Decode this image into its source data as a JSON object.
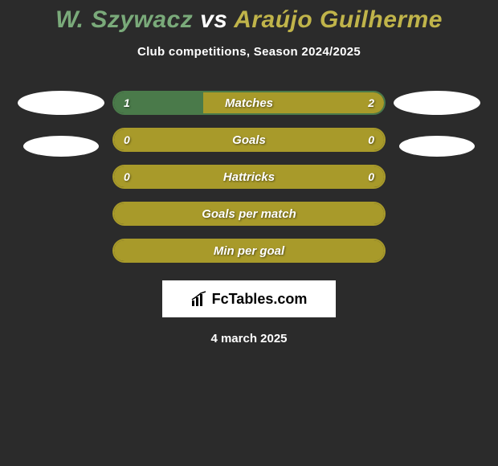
{
  "header": {
    "title_prefix": "W. Szywacz",
    "vs": "vs",
    "title_suffix": "Araújo Guilherme",
    "subtitle": "Club competitions, Season 2024/2025"
  },
  "player1_color": "#4a7a4a",
  "player2_color": "#a89a2a",
  "title_player1_color": "#7aaa7a",
  "title_vs_color": "#ffffff",
  "title_player2_color": "#c0b44a",
  "stats": {
    "matches": {
      "label": "Matches",
      "left_value": "1",
      "right_value": "2",
      "left_fill_pct": 33,
      "right_fill_pct": 67,
      "show_values": true
    },
    "goals": {
      "label": "Goals",
      "left_value": "0",
      "right_value": "0",
      "full_color": "player2",
      "show_values": true
    },
    "hattricks": {
      "label": "Hattricks",
      "left_value": "0",
      "right_value": "0",
      "full_color": "player2",
      "show_values": true
    },
    "gpm": {
      "label": "Goals per match",
      "full_color": "player2",
      "show_values": false
    },
    "mpg": {
      "label": "Min per goal",
      "full_color": "player2",
      "show_values": false
    }
  },
  "footer": {
    "brand": "FcTables.com",
    "date": "4 march 2025"
  }
}
